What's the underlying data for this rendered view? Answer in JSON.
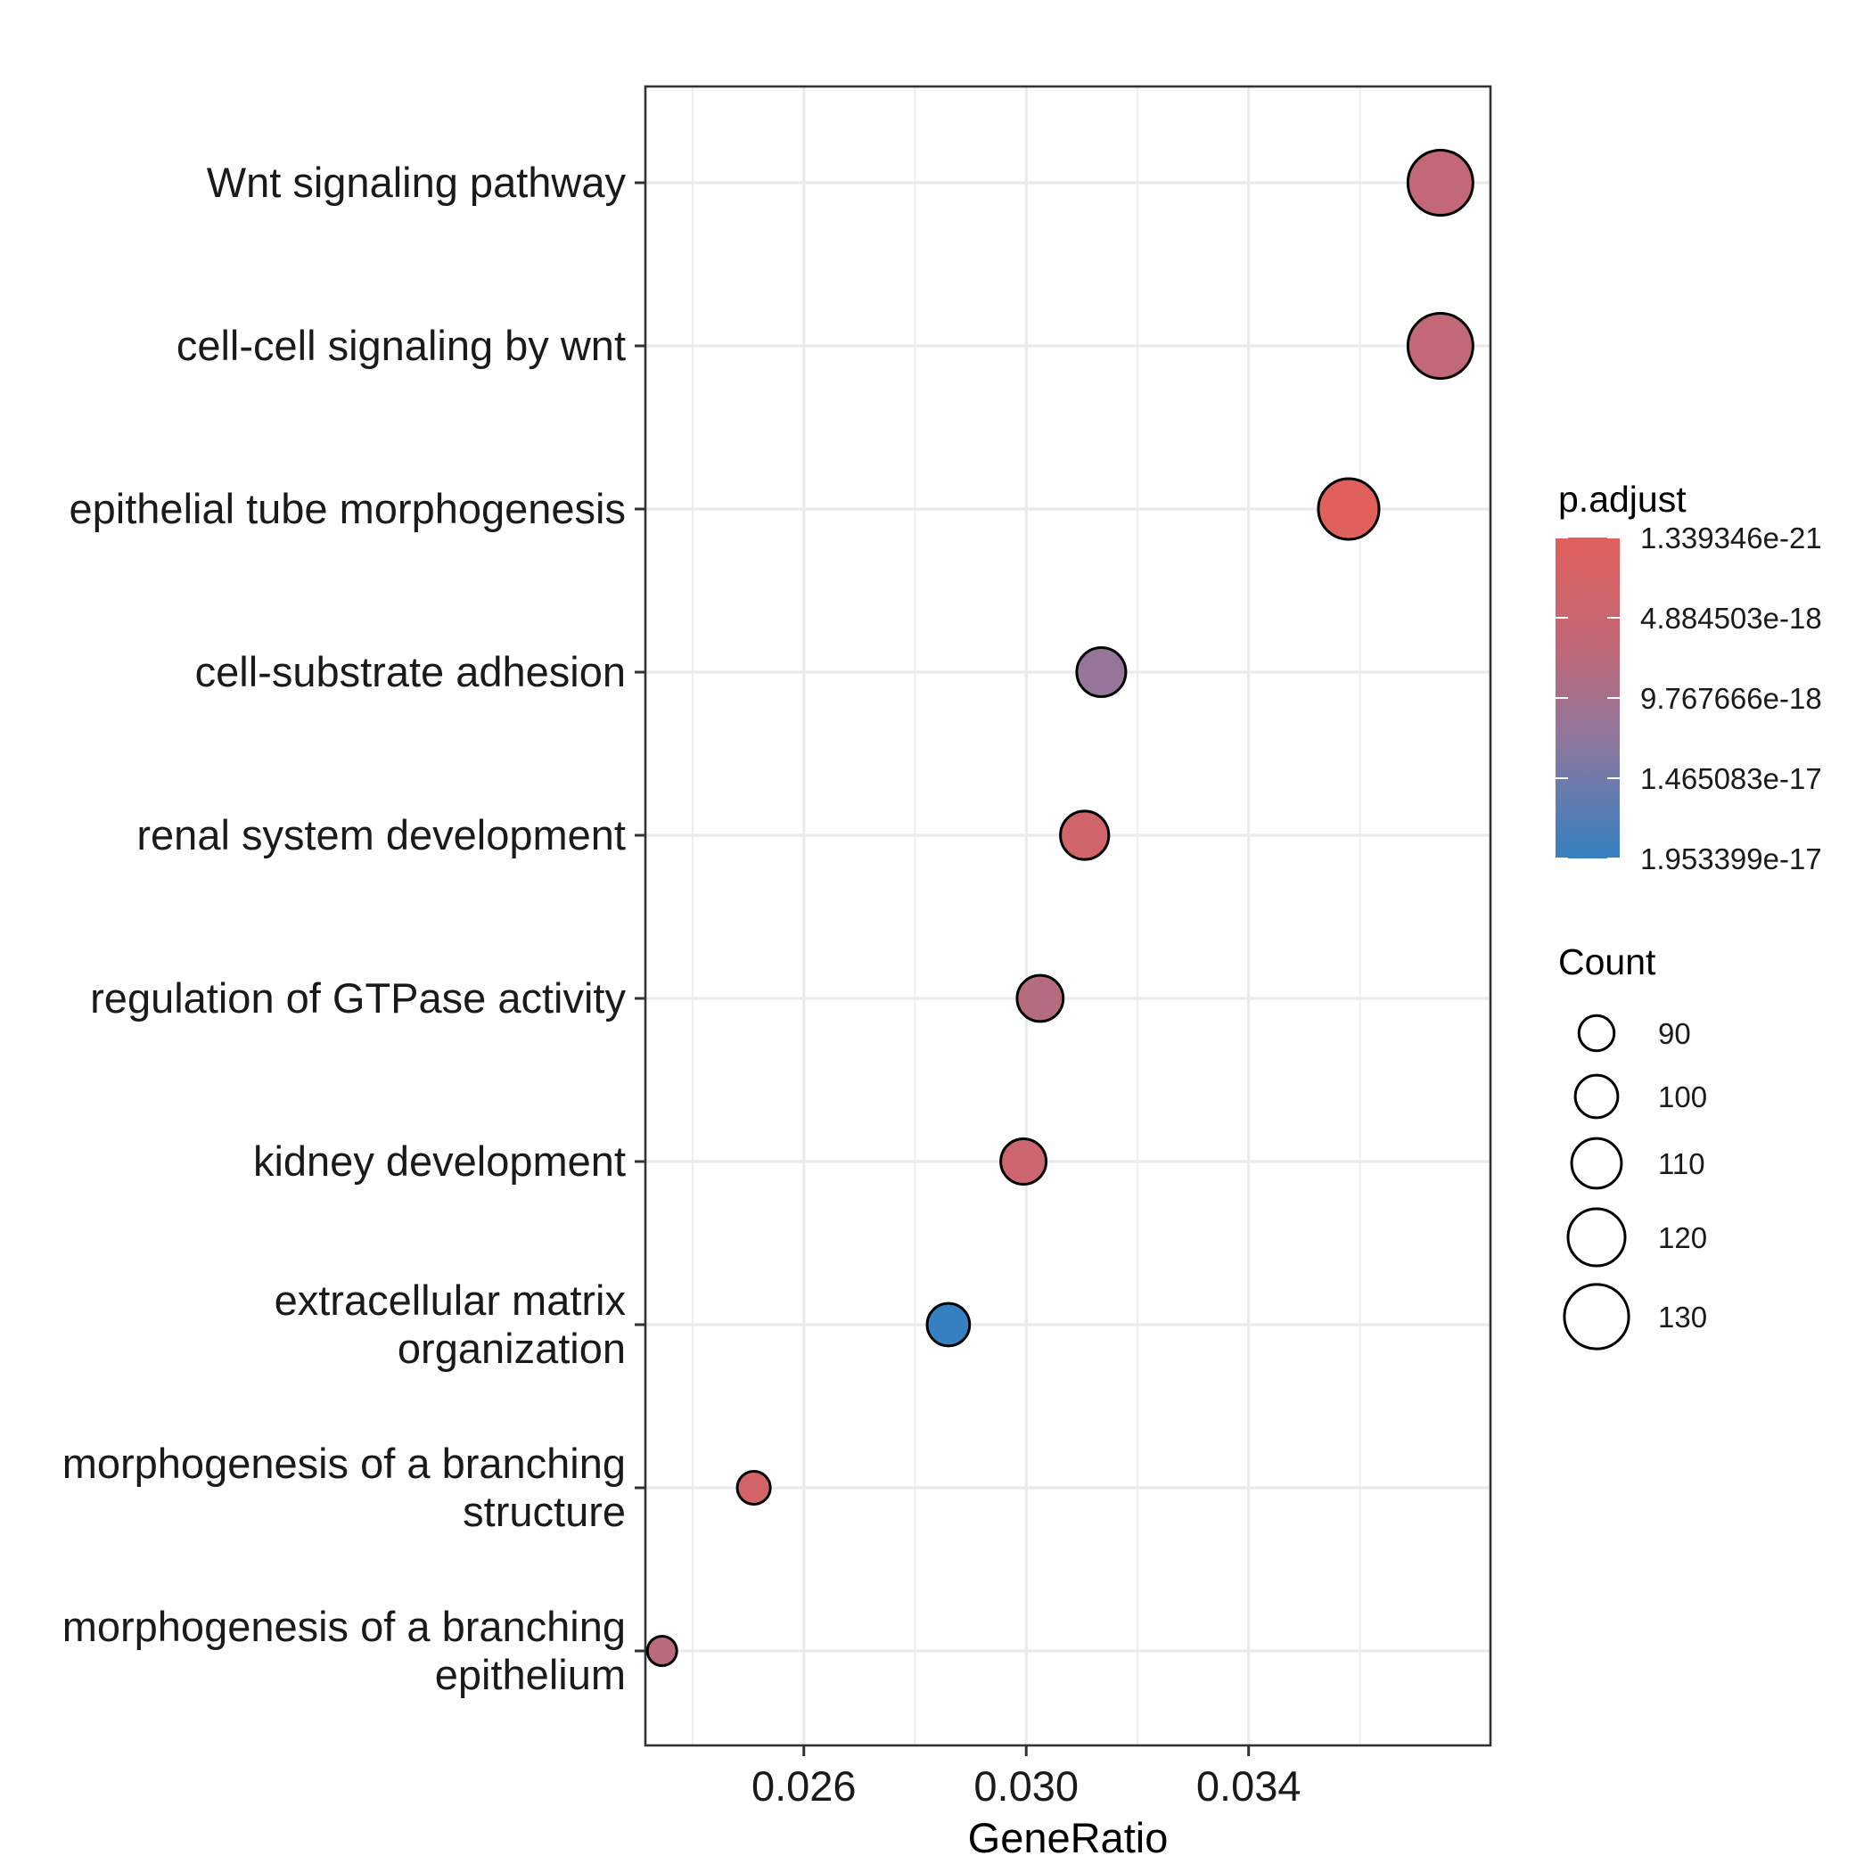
{
  "chart_data": {
    "type": "scatter",
    "subtype": "dot-plot",
    "title": "",
    "xlabel": "GeneRatio",
    "ylabel": "",
    "x_ticks": [
      "0.026",
      "0.030",
      "0.034"
    ],
    "x_tick_values": [
      0.026,
      0.03,
      0.034
    ],
    "xlim": [
      0.02315,
      0.03835
    ],
    "grid": true,
    "legend_placement": "right",
    "points": [
      {
        "term": "Wnt signaling pathway",
        "gene_ratio": 0.03745,
        "count": 131,
        "p_adjust": 6.5e-18
      },
      {
        "term": "cell-cell signaling by wnt",
        "gene_ratio": 0.03745,
        "count": 131,
        "p_adjust": 6.5e-18
      },
      {
        "term": "epithelial tube morphogenesis",
        "gene_ratio": 0.0358,
        "count": 125,
        "p_adjust": 1.339346e-21
      },
      {
        "term": "cell-substrate adhesion",
        "gene_ratio": 0.03135,
        "count": 109,
        "p_adjust": 1.15e-17
      },
      {
        "term": "renal system development",
        "gene_ratio": 0.03105,
        "count": 108,
        "p_adjust": 3.5e-18
      },
      {
        "term": "regulation of GTPase activity",
        "gene_ratio": 0.03025,
        "count": 105,
        "p_adjust": 8e-18
      },
      {
        "term": "kidney development",
        "gene_ratio": 0.02995,
        "count": 104,
        "p_adjust": 4.5e-18
      },
      {
        "term": "extracellular matrix\norganization",
        "gene_ratio": 0.0286,
        "count": 100,
        "p_adjust": 1.953399e-17
      },
      {
        "term": "morphogenesis of a branching\nstructure",
        "gene_ratio": 0.0251,
        "count": 87,
        "p_adjust": 3e-18
      },
      {
        "term": "morphogenesis of a branching\nepithelium",
        "gene_ratio": 0.02345,
        "count": 82,
        "p_adjust": 7.5e-18
      }
    ],
    "color_legend": {
      "title": "p.adjust",
      "labels": [
        "1.339346e-21",
        "4.884503e-18",
        "9.767666e-18",
        "1.465083e-17",
        "1.953399e-17"
      ],
      "values": [
        1.339346e-21,
        4.884503e-18,
        9.767666e-18,
        1.465083e-17,
        1.953399e-17
      ],
      "low_color": "#e0605c",
      "high_color": "#3580c0"
    },
    "size_legend": {
      "title": "Count",
      "labels": [
        "90",
        "100",
        "110",
        "120",
        "130"
      ],
      "values": [
        90,
        100,
        110,
        120,
        130
      ]
    },
    "colors": {
      "panel_border": "#333333",
      "grid": "#ebebeb",
      "point_stroke": "#000000"
    }
  }
}
